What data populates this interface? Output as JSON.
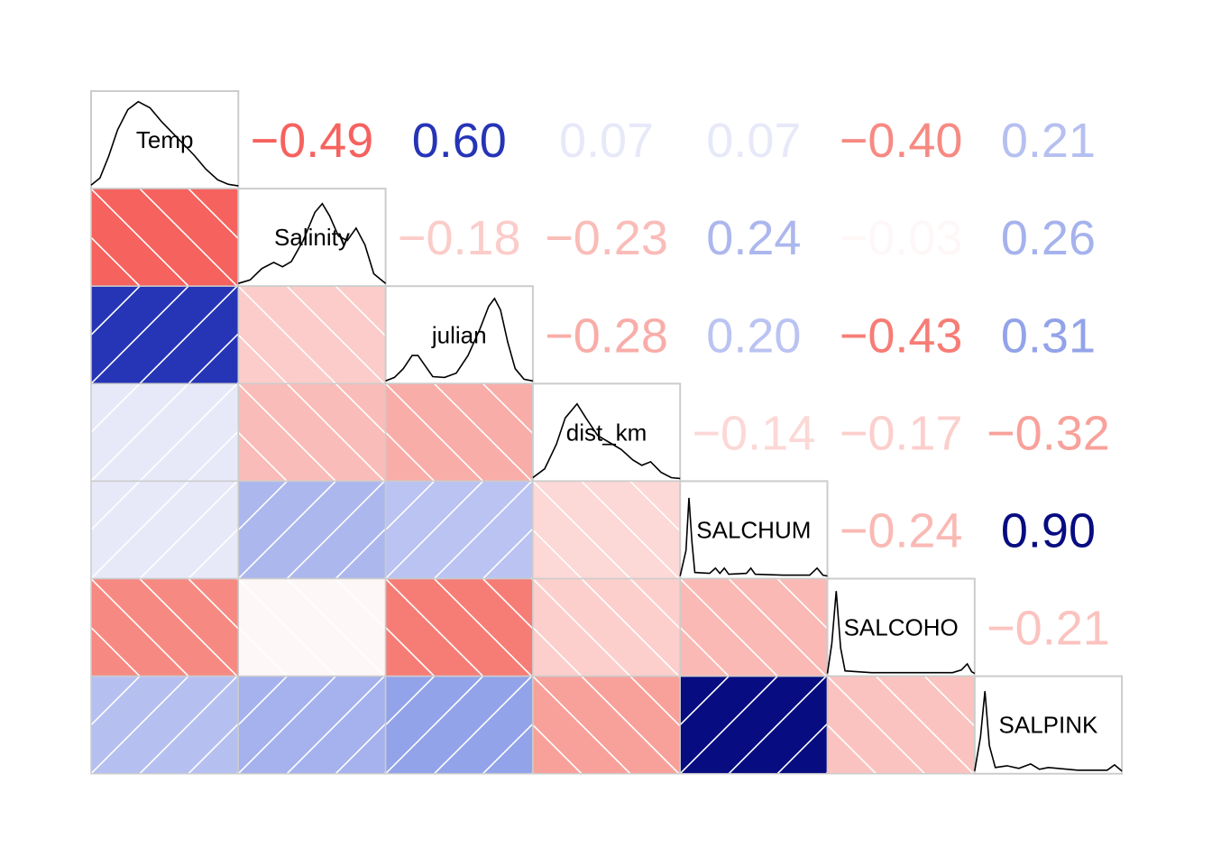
{
  "chart_data": {
    "type": "heatmap",
    "title": "",
    "variables": [
      "Temp",
      "Salinity",
      "julian",
      "dist_km",
      "SALCHUM",
      "SALCOHO",
      "SALPINK"
    ],
    "matrix": [
      [
        1.0,
        -0.49,
        0.6,
        0.07,
        0.07,
        -0.4,
        0.21
      ],
      [
        -0.49,
        1.0,
        -0.18,
        -0.23,
        0.24,
        -0.03,
        0.26
      ],
      [
        0.6,
        -0.18,
        1.0,
        -0.28,
        0.2,
        -0.43,
        0.31
      ],
      [
        0.07,
        -0.23,
        -0.28,
        1.0,
        -0.14,
        -0.17,
        -0.32
      ],
      [
        0.07,
        0.24,
        0.2,
        -0.14,
        1.0,
        -0.24,
        0.9
      ],
      [
        -0.4,
        -0.03,
        -0.43,
        -0.17,
        -0.24,
        1.0,
        -0.21
      ],
      [
        0.21,
        0.26,
        0.31,
        -0.32,
        0.9,
        -0.21,
        1.0
      ]
    ],
    "upper_panel": "correlation values as text",
    "lower_panel": "shaded cells with hatching",
    "diagonal_panel": "density curves with variable name",
    "color_scale": {
      "negative_strong": "#F65E5A",
      "negative_weak": "#FDE5E4",
      "positive_weak": "#DCE0F7",
      "positive_strong": "#000070"
    }
  },
  "diagonal_density": {
    "Temp": [
      [
        0,
        0.02
      ],
      [
        0.06,
        0.1
      ],
      [
        0.12,
        0.35
      ],
      [
        0.18,
        0.65
      ],
      [
        0.25,
        0.88
      ],
      [
        0.32,
        0.97
      ],
      [
        0.4,
        0.9
      ],
      [
        0.48,
        0.74
      ],
      [
        0.55,
        0.62
      ],
      [
        0.62,
        0.5
      ],
      [
        0.7,
        0.36
      ],
      [
        0.78,
        0.2
      ],
      [
        0.86,
        0.08
      ],
      [
        0.93,
        0.03
      ],
      [
        1,
        0.01
      ]
    ],
    "Salinity": [
      [
        0,
        0.01
      ],
      [
        0.08,
        0.05
      ],
      [
        0.16,
        0.18
      ],
      [
        0.24,
        0.25
      ],
      [
        0.3,
        0.2
      ],
      [
        0.36,
        0.26
      ],
      [
        0.44,
        0.5
      ],
      [
        0.52,
        0.82
      ],
      [
        0.57,
        0.92
      ],
      [
        0.62,
        0.78
      ],
      [
        0.68,
        0.55
      ],
      [
        0.74,
        0.5
      ],
      [
        0.8,
        0.64
      ],
      [
        0.86,
        0.45
      ],
      [
        0.92,
        0.12
      ],
      [
        1,
        0.01
      ]
    ],
    "julian": [
      [
        0,
        0.01
      ],
      [
        0.06,
        0.05
      ],
      [
        0.12,
        0.15
      ],
      [
        0.18,
        0.3
      ],
      [
        0.22,
        0.3
      ],
      [
        0.27,
        0.18
      ],
      [
        0.32,
        0.06
      ],
      [
        0.4,
        0.05
      ],
      [
        0.48,
        0.1
      ],
      [
        0.56,
        0.3
      ],
      [
        0.64,
        0.6
      ],
      [
        0.7,
        0.86
      ],
      [
        0.74,
        0.95
      ],
      [
        0.78,
        0.82
      ],
      [
        0.83,
        0.45
      ],
      [
        0.88,
        0.15
      ],
      [
        0.94,
        0.03
      ],
      [
        1,
        0.01
      ]
    ],
    "dist_km": [
      [
        0,
        0.02
      ],
      [
        0.08,
        0.12
      ],
      [
        0.16,
        0.4
      ],
      [
        0.22,
        0.7
      ],
      [
        0.3,
        0.86
      ],
      [
        0.36,
        0.7
      ],
      [
        0.44,
        0.5
      ],
      [
        0.52,
        0.42
      ],
      [
        0.6,
        0.34
      ],
      [
        0.68,
        0.22
      ],
      [
        0.74,
        0.16
      ],
      [
        0.8,
        0.2
      ],
      [
        0.87,
        0.08
      ],
      [
        0.94,
        0.02
      ],
      [
        1,
        0.01
      ]
    ],
    "SALCHUM": [
      [
        0,
        0.01
      ],
      [
        0.04,
        0.3
      ],
      [
        0.06,
        0.9
      ],
      [
        0.08,
        0.4
      ],
      [
        0.1,
        0.05
      ],
      [
        0.2,
        0.04
      ],
      [
        0.24,
        0.1
      ],
      [
        0.27,
        0.04
      ],
      [
        0.3,
        0.1
      ],
      [
        0.33,
        0.03
      ],
      [
        0.45,
        0.04
      ],
      [
        0.48,
        0.1
      ],
      [
        0.51,
        0.03
      ],
      [
        0.7,
        0.02
      ],
      [
        0.88,
        0.02
      ],
      [
        0.93,
        0.1
      ],
      [
        0.97,
        0.02
      ],
      [
        1,
        0.01
      ]
    ],
    "SALCOHO": [
      [
        0,
        0.01
      ],
      [
        0.03,
        0.35
      ],
      [
        0.06,
        0.95
      ],
      [
        0.09,
        0.3
      ],
      [
        0.12,
        0.04
      ],
      [
        0.3,
        0.02
      ],
      [
        0.6,
        0.02
      ],
      [
        0.85,
        0.02
      ],
      [
        0.91,
        0.05
      ],
      [
        0.95,
        0.12
      ],
      [
        0.98,
        0.03
      ],
      [
        1,
        0.01
      ]
    ],
    "SALPINK": [
      [
        0,
        0.01
      ],
      [
        0.04,
        0.4
      ],
      [
        0.07,
        0.92
      ],
      [
        0.1,
        0.3
      ],
      [
        0.14,
        0.05
      ],
      [
        0.22,
        0.07
      ],
      [
        0.3,
        0.04
      ],
      [
        0.38,
        0.09
      ],
      [
        0.44,
        0.03
      ],
      [
        0.5,
        0.05
      ],
      [
        0.7,
        0.02
      ],
      [
        0.9,
        0.02
      ],
      [
        0.95,
        0.08
      ],
      [
        1,
        0.01
      ]
    ]
  }
}
